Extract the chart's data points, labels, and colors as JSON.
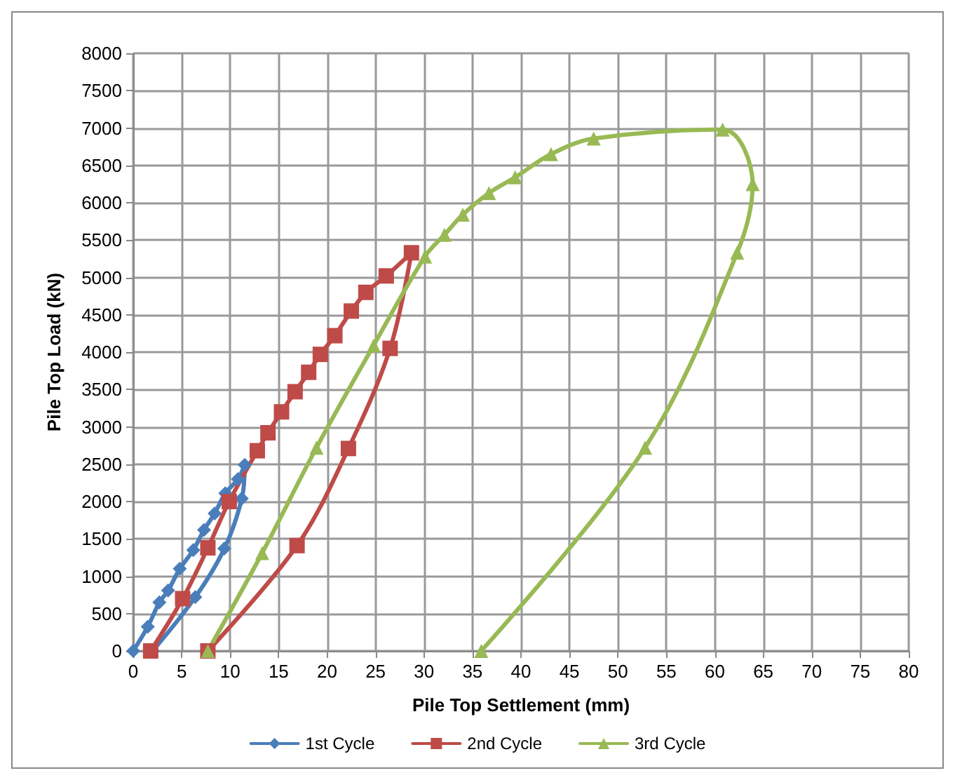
{
  "chart_data": {
    "type": "line",
    "xlabel": "Pile Top Settlement (mm)",
    "ylabel": "Pile Top Load (kN)",
    "xlim": [
      0,
      80
    ],
    "xticks": [
      0,
      5,
      10,
      15,
      20,
      25,
      30,
      35,
      40,
      45,
      50,
      55,
      60,
      65,
      70,
      75,
      80
    ],
    "ylim": [
      0,
      8000
    ],
    "yticks": [
      0,
      500,
      1000,
      1500,
      2000,
      2500,
      3000,
      3500,
      4000,
      4500,
      5000,
      5500,
      6000,
      6500,
      7000,
      7500,
      8000
    ],
    "grid": true,
    "legend": "bottom",
    "line_style": "solid",
    "series": [
      {
        "name": "1st Cycle",
        "color": "#4a7ebb",
        "marker": "diamond",
        "x": [
          0,
          1.5,
          2.7,
          3.6,
          4.8,
          6.2,
          7.3,
          8.4,
          9.5,
          10.8,
          11.5,
          11.2,
          9.4,
          6.4,
          2
        ],
        "values": [
          0,
          325,
          650,
          810,
          1100,
          1350,
          1620,
          1840,
          2110,
          2300,
          2490,
          2040,
          1370,
          720,
          0
        ]
      },
      {
        "name": "2nd Cycle",
        "color": "#be4b48",
        "marker": "square",
        "x": [
          1.8,
          5.1,
          7.7,
          9.9,
          12.8,
          13.9,
          15.3,
          16.7,
          18.1,
          19.3,
          20.8,
          22.5,
          24,
          26.1,
          28.7,
          26.5,
          22.2,
          16.9,
          7.7
        ],
        "values": [
          0,
          700,
          1380,
          2000,
          2680,
          2920,
          3200,
          3470,
          3730,
          3970,
          4220,
          4550,
          4800,
          5020,
          5330,
          4050,
          2710,
          1410,
          0
        ]
      },
      {
        "name": "3rd Cycle",
        "color": "#98b954",
        "marker": "triangle",
        "x": [
          7.7,
          13.3,
          18.9,
          24.8,
          30.1,
          32.1,
          34,
          36.7,
          39.4,
          43.1,
          47.5,
          60.8,
          63.9,
          62.3,
          52.8,
          35.9
        ],
        "values": [
          0,
          1310,
          2720,
          4090,
          5280,
          5570,
          5840,
          6130,
          6340,
          6650,
          6860,
          6980,
          6250,
          5330,
          2720,
          0
        ]
      }
    ]
  }
}
